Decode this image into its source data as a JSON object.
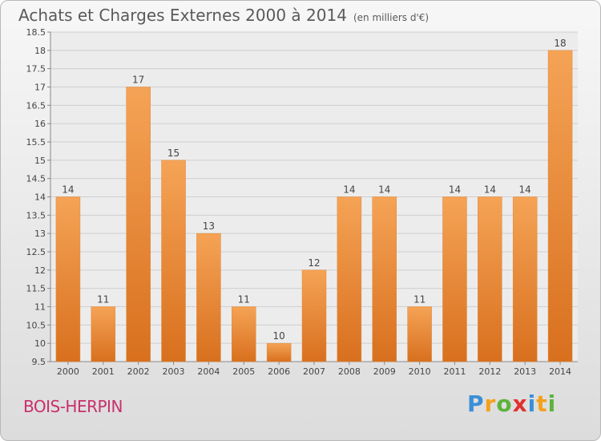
{
  "header": {
    "title": "Achats et Charges Externes 2000 à 2014",
    "subtitle": "(en milliers d'€)"
  },
  "footer": {
    "commune": "BOIS-HERPIN",
    "brand_letters": [
      {
        "ch": "P",
        "color": "#3a8fd6"
      },
      {
        "ch": "r",
        "color": "#f4a11d"
      },
      {
        "ch": "o",
        "color": "#5db33b"
      },
      {
        "ch": "x",
        "color": "#e0322f"
      },
      {
        "ch": "i",
        "color": "#3a8fd6"
      },
      {
        "ch": "t",
        "color": "#f4a11d"
      },
      {
        "ch": "i",
        "color": "#5db33b"
      }
    ]
  },
  "chart_data": {
    "type": "bar",
    "title": "Achats et Charges Externes 2000 à 2014",
    "subtitle": "(en milliers d'€)",
    "categories": [
      "2000",
      "2001",
      "2002",
      "2003",
      "2004",
      "2005",
      "2006",
      "2007",
      "2008",
      "2009",
      "2010",
      "2011",
      "2012",
      "2013",
      "2014"
    ],
    "values": [
      14,
      11,
      17,
      15,
      13,
      11,
      10,
      12,
      14,
      14,
      11,
      14,
      14,
      14,
      18
    ],
    "ylim": [
      9.5,
      18.5
    ],
    "yticks": [
      9.5,
      10,
      10.5,
      11,
      11.5,
      12,
      12.5,
      13,
      13.5,
      14,
      14.5,
      15,
      15.5,
      16,
      16.5,
      17,
      17.5,
      18,
      18.5
    ],
    "grid": true,
    "bar_color": "#f0923a"
  }
}
